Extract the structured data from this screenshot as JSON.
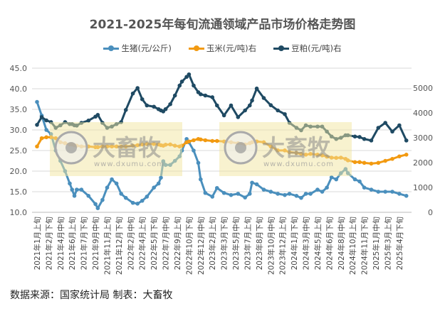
{
  "chart_data": {
    "type": "line",
    "title": "2021-2025年每旬流通领域产品市场价格走势图",
    "left_axis": {
      "range": [
        10,
        45
      ],
      "ticks": [
        "10.0",
        "15.0",
        "20.0",
        "25.0",
        "30.0",
        "35.0",
        "40.0",
        "45.0"
      ]
    },
    "right_axis": {
      "range": [
        0,
        5800
      ],
      "ticks": [
        "0",
        "1000",
        "2000",
        "3000",
        "4000",
        "5000"
      ]
    },
    "grid": true,
    "legend_position": "top",
    "x_tick_labels": [
      "2021年1月上旬",
      "2021年2月下旬",
      "2021年4月中旬",
      "2021年6月上旬",
      "2021年7月下旬",
      "2021年9月中旬",
      "2021年11月上旬",
      "2021年12月下旬",
      "2022年2月中旬",
      "2022年4月上旬",
      "2022年5月下旬",
      "2022年7月中旬",
      "2022年9月上旬",
      "2022年10月下旬",
      "2022年12月中旬",
      "2023年2月上旬",
      "2023年3月下旬",
      "2023年5月中旬",
      "2023年7月上旬",
      "2023年8月下旬",
      "2023年10月中旬",
      "2023年12月上旬",
      "2024年1月下旬",
      "2024年3月中旬",
      "2024年5月上旬",
      "2024年6月下旬",
      "2024年8月中旬",
      "2024年10月上旬",
      "2024年11月下旬",
      "2025年1月中旬",
      "2025年3月上旬",
      "2025年4月下旬"
    ],
    "x": [
      "2021年1月上旬",
      "2021年1月下旬",
      "2021年2月中旬",
      "2021年3月上旬",
      "2021年3月下旬",
      "2021年4月中旬",
      "2021年5月上旬",
      "2021年5月下旬",
      "2021年6月上旬",
      "2021年6月中旬",
      "2021年6月下旬",
      "2021年7月中旬",
      "2021年8月中旬",
      "2021年9月中旬",
      "2021年9月下旬",
      "2021年10月中旬",
      "2021年11月上旬",
      "2021年11月下旬",
      "2021年12月中旬",
      "2022年1月上旬",
      "2022年1月下旬",
      "2022年2月下旬",
      "2022年3月中旬",
      "2022年4月上旬",
      "2022年4月下旬",
      "2022年5月下旬",
      "2022年6月中旬",
      "2022年6月下旬",
      "2022年7月上旬",
      "2022年7月中旬",
      "2022年8月上旬",
      "2022年8月下旬",
      "2022年9月中旬",
      "2022年9月下旬",
      "2022年10月中旬",
      "2022年10月下旬",
      "2022年11月中旬",
      "2022年12月上旬",
      "2022年12月中旬",
      "2023年1月上旬",
      "2023年2月上旬",
      "2023年2月下旬",
      "2023年3月下旬",
      "2023年4月下旬",
      "2023年5月下旬",
      "2023年6月下旬",
      "2023年7月中旬",
      "2023年7月下旬",
      "2023年8月中旬",
      "2023年9月中旬",
      "2023年10月中旬",
      "2023年11月中旬",
      "2023年12月中旬",
      "2024年1月上旬",
      "2024年2月上旬",
      "2024年2月下旬",
      "2024年3月中旬",
      "2024年4月上旬",
      "2024年5月上旬",
      "2024年5月下旬",
      "2024年6月中旬",
      "2024年7月上旬",
      "2024年7月下旬",
      "2024年8月中旬",
      "2024年9月上旬",
      "2024年9月中旬",
      "2024年10月中旬",
      "2024年11月上旬",
      "2024年11月下旬",
      "2024年12月下旬",
      "2025年1月下旬",
      "2025年2月下旬",
      "2025年3月下旬",
      "2025年4月下旬",
      "2025年5月下旬"
    ],
    "series": [
      {
        "name": "生猪(元/公斤)",
        "axis": "left",
        "color": "#4a8fbd",
        "values": [
          36.8,
          33.5,
          30,
          29,
          25,
          22.5,
          20,
          17,
          15.5,
          14,
          15.5,
          15.5,
          14,
          12,
          11,
          13,
          16,
          18,
          17,
          14.5,
          13.5,
          12.3,
          12.1,
          12.8,
          13.8,
          16,
          17,
          18.4,
          22.4,
          21.5,
          21.5,
          22.5,
          23.6,
          25,
          27.8,
          27,
          25,
          22,
          18,
          14.7,
          13.8,
          15.9,
          14.7,
          14.2,
          14.5,
          13.6,
          14.5,
          17.2,
          16.8,
          15.5,
          15,
          14.5,
          14.2,
          14.5,
          14,
          13.5,
          14.5,
          14.5,
          15.5,
          15,
          16,
          18.5,
          18,
          19.5,
          20.5,
          19.5,
          18,
          17.5,
          16,
          15.5,
          15,
          15,
          15,
          14.5,
          14
        ]
      },
      {
        "name": "玉米(元/吨)右",
        "axis": "right",
        "color": "#f29a11",
        "values": [
          2650,
          2980,
          3020,
          3020,
          2980,
          2820,
          2780,
          2730,
          2730,
          2700,
          2680,
          2650,
          2650,
          2620,
          2620,
          2650,
          2650,
          2650,
          2650,
          2650,
          2650,
          2680,
          2700,
          2730,
          2750,
          2750,
          2730,
          2700,
          2680,
          2720,
          2730,
          2680,
          2650,
          2680,
          2820,
          2850,
          2900,
          2950,
          2930,
          2900,
          2870,
          2870,
          2850,
          2820,
          2780,
          2730,
          2780,
          2820,
          2850,
          2820,
          2650,
          2490,
          2490,
          2420,
          2390,
          2350,
          2320,
          2350,
          2320,
          2290,
          2240,
          2200,
          2190,
          2200,
          2150,
          2090,
          2020,
          2020,
          1990,
          1960,
          1990,
          2070,
          2150,
          2250,
          2320
        ]
      },
      {
        "name": "豆粕(元/吨)右",
        "axis": "right",
        "color": "#1f4a63",
        "values": [
          3520,
          3830,
          3700,
          3630,
          3400,
          3500,
          3630,
          3550,
          3550,
          3500,
          3490,
          3600,
          3690,
          3850,
          3920,
          3600,
          3400,
          3450,
          3550,
          3630,
          4120,
          4780,
          5000,
          4550,
          4300,
          4250,
          4150,
          4100,
          4060,
          4150,
          4350,
          4700,
          5100,
          5260,
          5450,
          5550,
          5100,
          4830,
          4750,
          4700,
          4630,
          4300,
          3900,
          4300,
          3830,
          4100,
          4300,
          4500,
          4980,
          4600,
          4310,
          4100,
          3950,
          3600,
          3400,
          3300,
          3500,
          3450,
          3450,
          3450,
          3250,
          3050,
          2950,
          3000,
          3100,
          3100,
          3050,
          3030,
          2950,
          2890,
          3400,
          3600,
          3250,
          3500,
          2890
        ]
      }
    ]
  },
  "watermark": {
    "brand": "大畜牧",
    "url": "www.dxumu.com"
  },
  "footer": "数据来源：国家统计局  制表：大畜牧"
}
